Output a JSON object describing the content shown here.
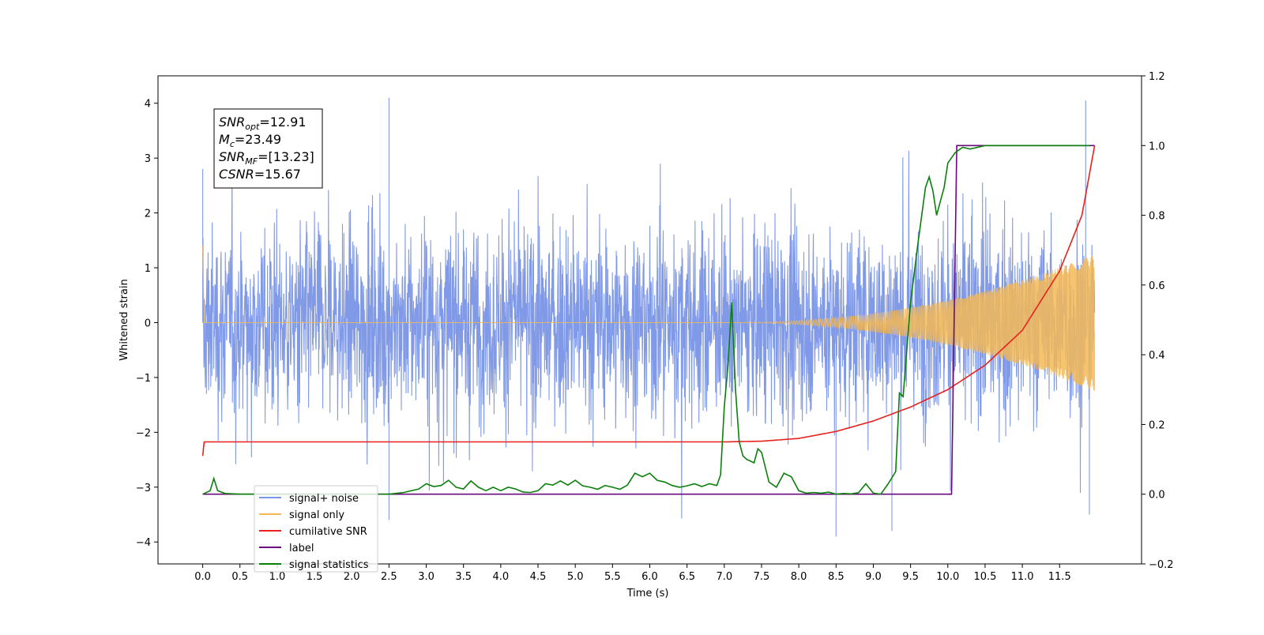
{
  "chart_data": {
    "type": "line",
    "xlabel": "Time (s)",
    "ylabel": "Whitened strain",
    "xlim": [
      -0.6,
      12.6
    ],
    "ylim": [
      -4.4,
      4.5
    ],
    "y2lim": [
      -0.2,
      1.2
    ],
    "grid": false,
    "legend_position": "lower-left",
    "x_ticks": [
      "0.0",
      "0.5",
      "1.0",
      "1.5",
      "2.0",
      "2.5",
      "3.0",
      "3.5",
      "4.0",
      "4.5",
      "5.0",
      "5.5",
      "6.0",
      "6.5",
      "7.0",
      "7.5",
      "8.0",
      "8.5",
      "9.0",
      "9.5",
      "10.0",
      "10.5",
      "11.0",
      "11.5"
    ],
    "y_ticks": [
      "−4",
      "−3",
      "−2",
      "−1",
      "0",
      "1",
      "2",
      "3",
      "4"
    ],
    "y2_ticks": [
      "−0.2",
      "0.0",
      "0.2",
      "0.4",
      "0.6",
      "0.8",
      "1.0",
      "1.2"
    ],
    "annotation": [
      {
        "name": "SNR",
        "sub": "opt",
        "value": "=12.91"
      },
      {
        "name": "M",
        "sub": "c",
        "value": "=23.49"
      },
      {
        "name": "SNR",
        "sub": "MF",
        "value": "=[13.23]"
      },
      {
        "name": "CSNR",
        "sub": "",
        "value": "=15.67"
      }
    ],
    "series": [
      {
        "name": "signal+ noise",
        "axis": "left",
        "color": "#7a95e6",
        "description_value": "noise-dominated whitened strain, roughly within −3.5 to +3.5 with spikes to ±4",
        "x_range": [
          0.0,
          11.97
        ],
        "envelope_peaks": [
          [
            0.0,
            2.8
          ],
          [
            0.05,
            -1.3
          ],
          [
            2.5,
            4.1
          ],
          [
            2.5,
            -3.6
          ],
          [
            8.5,
            -3.9
          ],
          [
            9.25,
            -3.8
          ],
          [
            11.85,
            4.05
          ],
          [
            11.9,
            -3.5
          ]
        ]
      },
      {
        "name": "signal only",
        "axis": "left",
        "color": "#f5b955",
        "chirp_start": 7.0,
        "end": 11.97,
        "final_amplitude": 1.25,
        "start_peak": 1.4
      },
      {
        "name": "cumilative SNR",
        "axis": "right",
        "color": "#e8211e",
        "x": [
          0.0,
          0.02,
          7.0,
          7.5,
          8.0,
          8.5,
          9.0,
          9.5,
          10.0,
          10.5,
          11.0,
          11.5,
          11.8,
          11.97
        ],
        "y": [
          0.11,
          0.15,
          0.15,
          0.152,
          0.16,
          0.18,
          0.21,
          0.25,
          0.3,
          0.37,
          0.47,
          0.64,
          0.8,
          1.0
        ]
      },
      {
        "name": "label",
        "axis": "right",
        "color": "#6b0a80",
        "x": [
          0.0,
          10.05,
          10.12,
          11.97
        ],
        "y": [
          0.0,
          0.0,
          1.0,
          1.0
        ]
      },
      {
        "name": "signal statistics",
        "axis": "right",
        "color": "#0b7f0b",
        "x": [
          0.0,
          0.1,
          0.15,
          0.2,
          0.3,
          0.5,
          1.0,
          2.0,
          2.5,
          2.7,
          2.9,
          3.0,
          3.1,
          3.2,
          3.3,
          3.4,
          3.5,
          3.6,
          3.7,
          3.8,
          3.9,
          4.0,
          4.1,
          4.2,
          4.3,
          4.4,
          4.5,
          4.6,
          4.7,
          4.8,
          4.9,
          5.0,
          5.1,
          5.2,
          5.3,
          5.4,
          5.5,
          5.6,
          5.7,
          5.8,
          5.9,
          6.0,
          6.1,
          6.2,
          6.3,
          6.4,
          6.5,
          6.6,
          6.7,
          6.8,
          6.9,
          6.95,
          7.0,
          7.05,
          7.1,
          7.15,
          7.2,
          7.25,
          7.3,
          7.4,
          7.45,
          7.5,
          7.6,
          7.7,
          7.8,
          7.9,
          8.0,
          8.1,
          8.2,
          8.3,
          8.4,
          8.5,
          8.6,
          8.7,
          8.8,
          8.9,
          9.0,
          9.1,
          9.2,
          9.3,
          9.35,
          9.4,
          9.5,
          9.6,
          9.7,
          9.75,
          9.8,
          9.85,
          9.9,
          9.95,
          10.0,
          10.1,
          10.2,
          10.3,
          10.5,
          11.0,
          11.5,
          11.9
        ],
        "y": [
          0.0,
          0.01,
          0.045,
          0.01,
          0.002,
          0.0,
          0.0,
          0.0,
          0.0,
          0.005,
          0.015,
          0.03,
          0.022,
          0.025,
          0.04,
          0.02,
          0.015,
          0.038,
          0.02,
          0.01,
          0.02,
          0.01,
          0.02,
          0.015,
          0.006,
          0.005,
          0.01,
          0.03,
          0.026,
          0.038,
          0.026,
          0.04,
          0.024,
          0.02,
          0.014,
          0.025,
          0.02,
          0.014,
          0.026,
          0.06,
          0.05,
          0.06,
          0.04,
          0.035,
          0.025,
          0.02,
          0.024,
          0.03,
          0.022,
          0.03,
          0.025,
          0.055,
          0.25,
          0.37,
          0.55,
          0.3,
          0.15,
          0.11,
          0.1,
          0.09,
          0.13,
          0.12,
          0.035,
          0.02,
          0.06,
          0.05,
          0.01,
          0.003,
          0.005,
          0.003,
          0.006,
          0.0,
          0.002,
          0.001,
          0.004,
          0.03,
          0.003,
          0.0,
          0.03,
          0.065,
          0.29,
          0.28,
          0.55,
          0.72,
          0.88,
          0.91,
          0.87,
          0.8,
          0.84,
          0.88,
          0.95,
          0.98,
          0.995,
          0.99,
          1.0,
          1.0,
          1.0,
          1.0
        ]
      }
    ],
    "legend": [
      "signal+ noise",
      "signal only",
      "cumilative SNR",
      "label",
      "signal statistics"
    ]
  }
}
